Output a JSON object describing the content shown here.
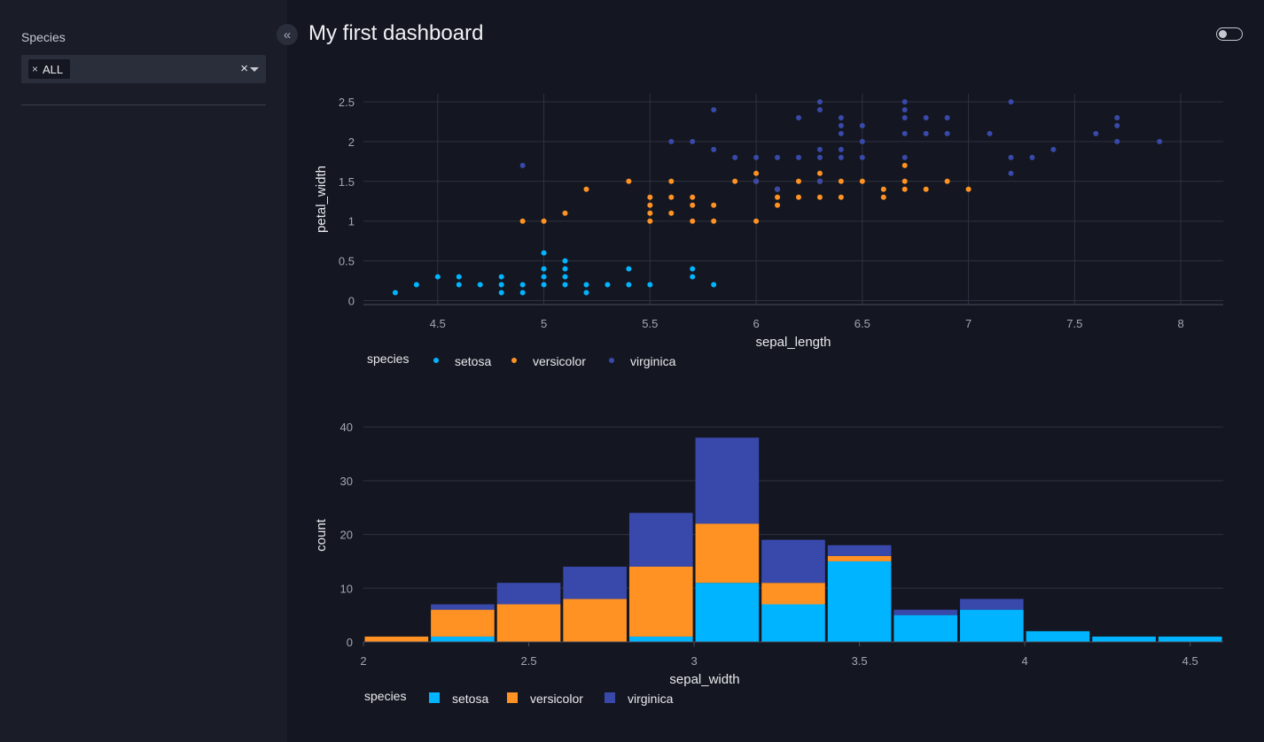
{
  "sidebar": {
    "filter_label": "Species",
    "selected_chip": "ALL",
    "chip_remove": "×",
    "clear_all": "×",
    "collapse_glyph": "«"
  },
  "header": {
    "title": "My first dashboard"
  },
  "colors": {
    "setosa": "#00b4ff",
    "versicolor": "#ff9222",
    "virginica": "#3949ab",
    "background": "#141721",
    "sidebar": "#1a1d28",
    "grid": "#2e3240"
  },
  "chart_data": [
    {
      "type": "scatter",
      "xlabel": "sepal_length",
      "ylabel": "petal_width",
      "xlim": [
        4.15,
        8.2
      ],
      "ylim": [
        -0.05,
        2.6
      ],
      "xticks": [
        "4.5",
        "5",
        "5.5",
        "6",
        "6.5",
        "7",
        "7.5",
        "8"
      ],
      "yticks": [
        "0",
        "0.5",
        "1",
        "1.5",
        "2",
        "2.5"
      ],
      "legend_title": "species",
      "series": [
        {
          "name": "setosa",
          "points": [
            [
              4.3,
              0.1
            ],
            [
              4.4,
              0.2
            ],
            [
              4.5,
              0.3
            ],
            [
              4.6,
              0.3
            ],
            [
              4.6,
              0.2
            ],
            [
              4.7,
              0.2
            ],
            [
              4.8,
              0.3
            ],
            [
              4.8,
              0.2
            ],
            [
              4.8,
              0.1
            ],
            [
              4.9,
              0.2
            ],
            [
              4.9,
              0.1
            ],
            [
              5.0,
              0.6
            ],
            [
              5.0,
              0.4
            ],
            [
              5.0,
              0.3
            ],
            [
              5.0,
              0.2
            ],
            [
              5.1,
              0.5
            ],
            [
              5.1,
              0.4
            ],
            [
              5.1,
              0.3
            ],
            [
              5.1,
              0.2
            ],
            [
              5.2,
              0.2
            ],
            [
              5.2,
              0.1
            ],
            [
              5.3,
              0.2
            ],
            [
              5.4,
              0.4
            ],
            [
              5.4,
              0.2
            ],
            [
              5.5,
              0.2
            ],
            [
              5.7,
              0.4
            ],
            [
              5.7,
              0.3
            ],
            [
              5.8,
              0.2
            ]
          ]
        },
        {
          "name": "versicolor",
          "points": [
            [
              4.9,
              1.0
            ],
            [
              5.0,
              1.0
            ],
            [
              5.1,
              1.1
            ],
            [
              5.2,
              1.4
            ],
            [
              5.4,
              1.5
            ],
            [
              5.5,
              1.3
            ],
            [
              5.5,
              1.2
            ],
            [
              5.5,
              1.1
            ],
            [
              5.5,
              1.0
            ],
            [
              5.6,
              1.5
            ],
            [
              5.6,
              1.3
            ],
            [
              5.6,
              1.1
            ],
            [
              5.7,
              1.3
            ],
            [
              5.7,
              1.2
            ],
            [
              5.7,
              1.0
            ],
            [
              5.8,
              1.2
            ],
            [
              5.8,
              1.0
            ],
            [
              5.9,
              1.5
            ],
            [
              6.0,
              1.6
            ],
            [
              6.0,
              1.5
            ],
            [
              6.0,
              1.0
            ],
            [
              6.1,
              1.4
            ],
            [
              6.1,
              1.3
            ],
            [
              6.1,
              1.2
            ],
            [
              6.2,
              1.5
            ],
            [
              6.2,
              1.3
            ],
            [
              6.3,
              1.6
            ],
            [
              6.3,
              1.5
            ],
            [
              6.3,
              1.3
            ],
            [
              6.4,
              1.5
            ],
            [
              6.4,
              1.3
            ],
            [
              6.5,
              1.5
            ],
            [
              6.6,
              1.4
            ],
            [
              6.6,
              1.3
            ],
            [
              6.7,
              1.7
            ],
            [
              6.7,
              1.5
            ],
            [
              6.7,
              1.4
            ],
            [
              6.8,
              1.4
            ],
            [
              6.9,
              1.5
            ],
            [
              7.0,
              1.4
            ]
          ]
        },
        {
          "name": "virginica",
          "points": [
            [
              4.9,
              1.7
            ],
            [
              5.6,
              2.0
            ],
            [
              5.7,
              2.0
            ],
            [
              5.8,
              2.4
            ],
            [
              5.8,
              1.9
            ],
            [
              5.9,
              1.8
            ],
            [
              6.0,
              1.8
            ],
            [
              6.0,
              1.5
            ],
            [
              6.1,
              1.8
            ],
            [
              6.1,
              1.4
            ],
            [
              6.2,
              1.8
            ],
            [
              6.3,
              2.5
            ],
            [
              6.3,
              2.4
            ],
            [
              6.3,
              1.9
            ],
            [
              6.3,
              1.8
            ],
            [
              6.3,
              1.5
            ],
            [
              6.4,
              2.3
            ],
            [
              6.4,
              2.2
            ],
            [
              6.4,
              2.1
            ],
            [
              6.4,
              1.9
            ],
            [
              6.4,
              1.8
            ],
            [
              6.5,
              2.2
            ],
            [
              6.5,
              2.0
            ],
            [
              6.5,
              1.8
            ],
            [
              6.7,
              2.5
            ],
            [
              6.7,
              2.4
            ],
            [
              6.7,
              2.3
            ],
            [
              6.7,
              2.1
            ],
            [
              6.7,
              1.8
            ],
            [
              6.8,
              2.3
            ],
            [
              6.8,
              2.1
            ],
            [
              6.9,
              2.3
            ],
            [
              6.9,
              2.1
            ],
            [
              7.1,
              2.1
            ],
            [
              7.2,
              2.5
            ],
            [
              7.2,
              1.8
            ],
            [
              7.2,
              1.6
            ],
            [
              7.3,
              1.8
            ],
            [
              7.4,
              1.9
            ],
            [
              7.6,
              2.1
            ],
            [
              7.7,
              2.3
            ],
            [
              7.7,
              2.2
            ],
            [
              7.7,
              2.0
            ],
            [
              7.9,
              2.0
            ],
            [
              6.2,
              2.3
            ]
          ]
        }
      ]
    },
    {
      "type": "bar",
      "stacked": true,
      "xlabel": "sepal_width",
      "ylabel": "count",
      "xlim": [
        2.0,
        4.6
      ],
      "ylim": [
        0,
        42
      ],
      "bin_width": 0.2,
      "bin_starts": [
        2.0,
        2.2,
        2.4,
        2.6,
        2.8,
        3.0,
        3.2,
        3.4,
        3.6,
        3.8,
        4.0,
        4.2,
        4.4
      ],
      "xticks": [
        "2",
        "2.5",
        "3",
        "3.5",
        "4",
        "4.5"
      ],
      "yticks": [
        "0",
        "10",
        "20",
        "30",
        "40"
      ],
      "legend_title": "species",
      "series": [
        {
          "name": "setosa",
          "values": [
            0,
            1,
            0,
            0,
            1,
            11,
            7,
            15,
            5,
            6,
            2,
            1,
            1
          ]
        },
        {
          "name": "versicolor",
          "values": [
            1,
            5,
            7,
            8,
            13,
            11,
            4,
            1,
            0,
            0,
            0,
            0,
            0
          ]
        },
        {
          "name": "virginica",
          "values": [
            0,
            1,
            4,
            6,
            10,
            16,
            8,
            2,
            1,
            2,
            0,
            0,
            0
          ]
        }
      ]
    }
  ]
}
